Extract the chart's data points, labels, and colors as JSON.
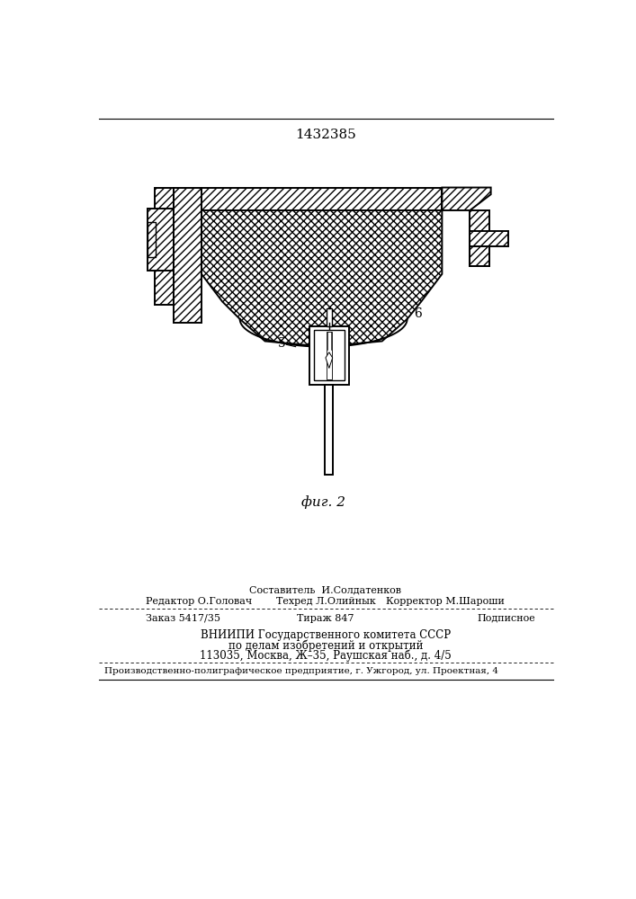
{
  "patent_number": "1432385",
  "fig_label": "фиг. 2",
  "label_5": "5",
  "label_6": "6",
  "bg_color": "#ffffff",
  "line_color": "#000000",
  "fig_width": 7.07,
  "fig_height": 10.0,
  "footer_line0": "Составитель  И.Солдатенков",
  "footer_line1_left": "Редактор О.Головач",
  "footer_line1_mid": "Техред Л.Олийнык",
  "footer_line1_right": "Корректор М.Шароши",
  "footer_line2_left": "Заказ 5417/35",
  "footer_line2_mid": "Тираж 847",
  "footer_line2_right": "Подписное",
  "vnipi_line1": "ВНИИПИ Государственного комитета СССР",
  "vnipi_line2": "по делам изобретений и открытий",
  "vnipi_line3": "113035, Москва, Ж–35, Раушская наб., д. 4/5",
  "prod_line": "Производственно-полиграфическое предприятие, г. Ужгород, ул. Проектная, 4"
}
